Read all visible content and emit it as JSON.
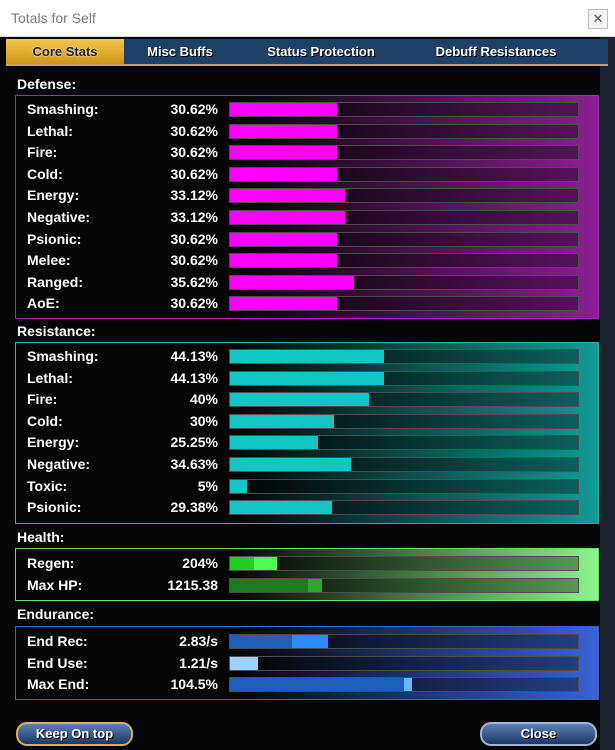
{
  "window": {
    "title": "Totals for Self",
    "close_glyph": "✕"
  },
  "tabs": [
    {
      "label": "Core Stats",
      "active": true
    },
    {
      "label": "Misc Buffs",
      "active": false
    },
    {
      "label": "Status Protection",
      "active": false
    },
    {
      "label": "Debuff Resistances",
      "active": false
    }
  ],
  "defense": {
    "label": "Defense:",
    "color": "#ff00ff",
    "rows": [
      {
        "name": "Smashing:",
        "value": "30.62%",
        "pct": 30.62
      },
      {
        "name": "Lethal:",
        "value": "30.62%",
        "pct": 30.62
      },
      {
        "name": "Fire:",
        "value": "30.62%",
        "pct": 30.62
      },
      {
        "name": "Cold:",
        "value": "30.62%",
        "pct": 30.62
      },
      {
        "name": "Energy:",
        "value": "33.12%",
        "pct": 33.12
      },
      {
        "name": "Negative:",
        "value": "33.12%",
        "pct": 33.12
      },
      {
        "name": "Psionic:",
        "value": "30.62%",
        "pct": 30.62
      },
      {
        "name": "Melee:",
        "value": "30.62%",
        "pct": 30.62
      },
      {
        "name": "Ranged:",
        "value": "35.62%",
        "pct": 35.62
      },
      {
        "name": "AoE:",
        "value": "30.62%",
        "pct": 30.62
      }
    ]
  },
  "resistance": {
    "label": "Resistance:",
    "color": "#13c6c4",
    "rows": [
      {
        "name": "Smashing:",
        "value": "44.13%",
        "pct": 44.13
      },
      {
        "name": "Lethal:",
        "value": "44.13%",
        "pct": 44.13
      },
      {
        "name": "Fire:",
        "value": "40%",
        "pct": 40
      },
      {
        "name": "Cold:",
        "value": "30%",
        "pct": 30
      },
      {
        "name": "Energy:",
        "value": "25.25%",
        "pct": 25.25
      },
      {
        "name": "Negative:",
        "value": "34.63%",
        "pct": 34.63
      },
      {
        "name": "Toxic:",
        "value": "5%",
        "pct": 5
      },
      {
        "name": "Psionic:",
        "value": "29.38%",
        "pct": 29.38
      }
    ]
  },
  "health": {
    "label": "Health:",
    "rows": [
      {
        "name": "Regen:",
        "value": "204%",
        "pct_main": 7,
        "pct_extra": 6.5,
        "color_main": "#1fcf1f",
        "color_extra": "#4cff4c"
      },
      {
        "name": "Max HP:",
        "value": "1215.38",
        "pct_main": 22.5,
        "pct_extra": 4,
        "color_main": "#1e7a1e",
        "color_extra": "#2ca82c"
      }
    ]
  },
  "endurance": {
    "label": "Endurance:",
    "rows": [
      {
        "name": "End Rec:",
        "value": "2.83/s",
        "pct_main": 17.7,
        "pct_extra": 10.5,
        "color_main": "#1f5fb8",
        "color_extra": "#2b8bff"
      },
      {
        "name": "End Use:",
        "value": "1.21/s",
        "pct_main": 8,
        "pct_extra": 0,
        "color_main": "#9fd0ff",
        "color_extra": "#9fd0ff"
      },
      {
        "name": "Max End:",
        "value": "104.5%",
        "pct_main": 50,
        "pct_extra": 2.3,
        "color_main": "#1f5fb8",
        "color_extra": "#6bb6ff"
      }
    ]
  },
  "buttons": {
    "keep_on_top": "Keep On top",
    "close": "Close"
  }
}
